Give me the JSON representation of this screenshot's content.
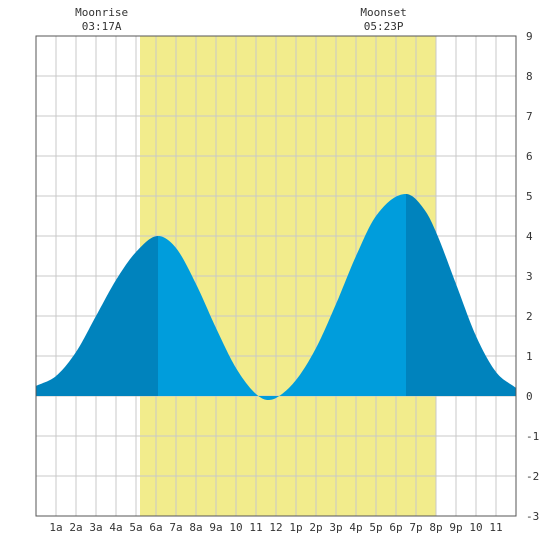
{
  "chart_data": {
    "type": "area",
    "title": "",
    "xlabel": "",
    "ylabel": "",
    "xlim": [
      0,
      24
    ],
    "ylim": [
      -3,
      9
    ],
    "yticks": [
      -3,
      -2,
      -1,
      0,
      1,
      2,
      3,
      4,
      5,
      6,
      7,
      8,
      9
    ],
    "xtick_labels": [
      "1a",
      "2a",
      "3a",
      "4a",
      "5a",
      "6a",
      "7a",
      "8a",
      "9a",
      "10",
      "11",
      "12",
      "1p",
      "2p",
      "3p",
      "4p",
      "5p",
      "6p",
      "7p",
      "8p",
      "9p",
      "10",
      "11"
    ],
    "grid": true,
    "daylight": {
      "start_hour": 5.2,
      "end_hour": 20.0
    },
    "moonrise": {
      "label": "Moonrise",
      "time": "03:17A",
      "hour": 3.28
    },
    "moonset": {
      "label": "Moonset",
      "time": "05:23P",
      "hour": 17.38
    },
    "tide_series": {
      "name": "",
      "x": [
        0,
        1,
        2,
        3,
        4,
        5,
        6.1,
        7,
        8,
        9,
        10,
        11,
        11.6,
        12,
        13,
        14,
        15,
        16,
        17,
        18.5,
        19.5,
        20,
        21,
        22,
        23,
        24
      ],
      "y": [
        0.25,
        0.5,
        1.1,
        2.0,
        2.9,
        3.6,
        4.0,
        3.7,
        2.8,
        1.7,
        0.7,
        0.05,
        -0.1,
        -0.05,
        0.4,
        1.2,
        2.3,
        3.5,
        4.5,
        5.05,
        4.6,
        4.1,
        2.8,
        1.5,
        0.6,
        0.2
      ]
    },
    "shade_breaks": [
      6.1,
      18.5
    ],
    "colors": {
      "daylight": "#f2ec8c",
      "tide_dark": "#0083bd",
      "tide_light": "#009ddc",
      "grid": "#c8c8c8",
      "axis": "#555555"
    }
  }
}
